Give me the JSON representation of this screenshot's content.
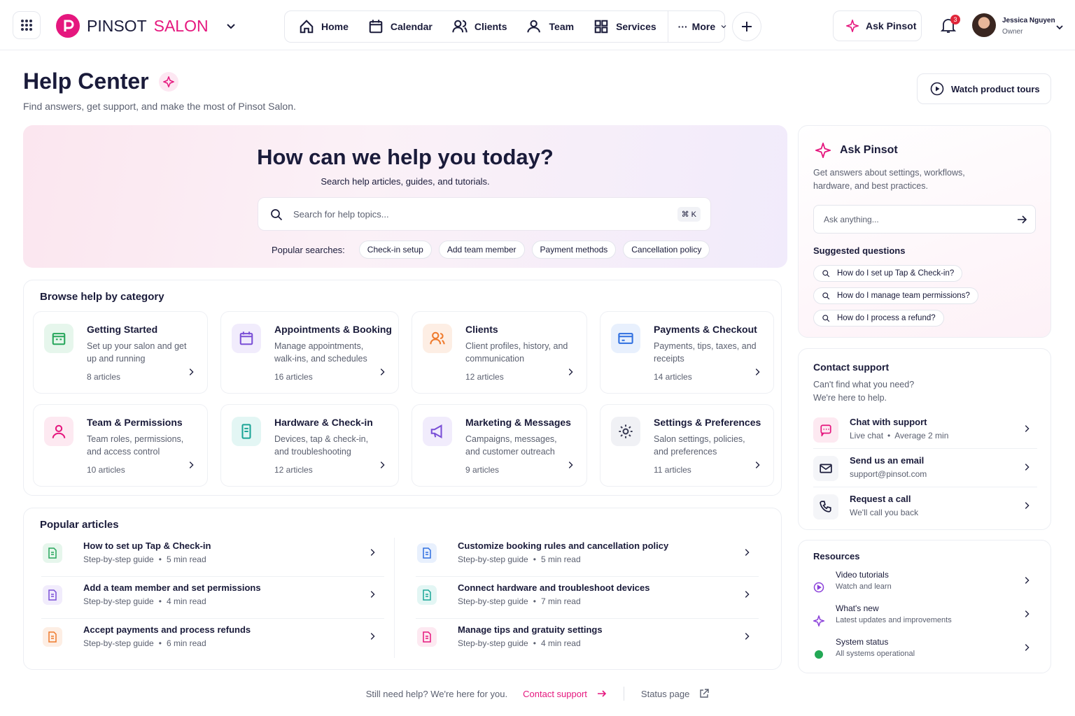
{
  "nav": {
    "brand_1": "PINSOT",
    "brand_2": "SALON",
    "items": [
      "Home",
      "Calendar",
      "Clients",
      "Team",
      "Services"
    ],
    "more": "More",
    "ask": "Ask Pinsot",
    "notifications": 3,
    "user_name": "Jessica Nguyen",
    "user_role": "Owner"
  },
  "header": {
    "title": "Help Center",
    "subtitle": "Find answers, get support, and make the most of Pinsot Salon.",
    "tours": "Watch product tours"
  },
  "hero": {
    "title": "How can we help you today?",
    "subtitle": "Search help articles, guides, and tutorials.",
    "search_placeholder": "Search for help topics...",
    "shortcut": "⌘ K",
    "popular_label": "Popular searches:",
    "popular": [
      "Check-in setup",
      "Add team member",
      "Payment methods",
      "Cancellation policy"
    ]
  },
  "categories": {
    "title": "Browse help by category",
    "items": [
      {
        "title": "Getting Started",
        "description": "Set up your salon and get up and running",
        "count": "8 articles"
      },
      {
        "title": "Appointments & Booking",
        "description": "Manage appointments, walk-ins, and schedules",
        "count": "16 articles"
      },
      {
        "title": "Clients",
        "description": "Client profiles, history, and communication",
        "count": "12 articles"
      },
      {
        "title": "Payments & Checkout",
        "description": "Payments, tips, taxes, and receipts",
        "count": "14 articles"
      },
      {
        "title": "Team & Permissions",
        "description": "Team roles, permissions, and access control",
        "count": "10 articles"
      },
      {
        "title": "Hardware & Check-in",
        "description": "Devices, tap & check-in, and troubleshooting",
        "count": "12 articles"
      },
      {
        "title": "Marketing & Messages",
        "description": "Campaigns, messages, and customer outreach",
        "count": "9 articles"
      },
      {
        "title": "Settings & Preferences",
        "description": "Salon settings, policies, and preferences",
        "count": "11 articles"
      }
    ]
  },
  "articles": {
    "title": "Popular articles",
    "items": [
      {
        "title": "How to set up Tap & Check-in",
        "kind": "Step-by-step guide",
        "time": "5 min read"
      },
      {
        "title": "Customize booking rules and cancellation policy",
        "kind": "Step-by-step guide",
        "time": "5 min read"
      },
      {
        "title": "Add a team member and set permissions",
        "kind": "Step-by-step guide",
        "time": "4 min read"
      },
      {
        "title": "Connect hardware and troubleshoot devices",
        "kind": "Step-by-step guide",
        "time": "7 min read"
      },
      {
        "title": "Accept payments and process refunds",
        "kind": "Step-by-step guide",
        "time": "6 min read"
      },
      {
        "title": "Manage tips and gratuity settings",
        "kind": "Step-by-step guide",
        "time": "4 min read"
      }
    ]
  },
  "ask": {
    "title": "Ask Pinsot",
    "description": "Get answers about settings, workflows, hardware, and best practices.",
    "placeholder": "Ask anything...",
    "suggested_title": "Suggested questions",
    "questions": [
      "How do I set up Tap & Check-in?",
      "How do I manage team permissions?",
      "How do I process a refund?"
    ]
  },
  "contact": {
    "title": "Contact support",
    "description": "Can't find what you need? We're here to help.",
    "items": [
      {
        "title": "Chat with support",
        "detail": "Live chat",
        "extra": "Average 2 min"
      },
      {
        "title": "Send us an email",
        "detail": "support@pinsot.com"
      },
      {
        "title": "Request a call",
        "detail": "We'll call you back"
      }
    ]
  },
  "resources": {
    "title": "Resources",
    "items": [
      {
        "title": "Video tutorials",
        "detail": "Watch and learn"
      },
      {
        "title": "What's new",
        "detail": "Latest updates and improvements"
      },
      {
        "title": "System status",
        "detail": "All systems operational"
      }
    ]
  },
  "footer": {
    "text": "Still need help? We're here for you.",
    "contact": "Contact support",
    "status": "Status page"
  }
}
